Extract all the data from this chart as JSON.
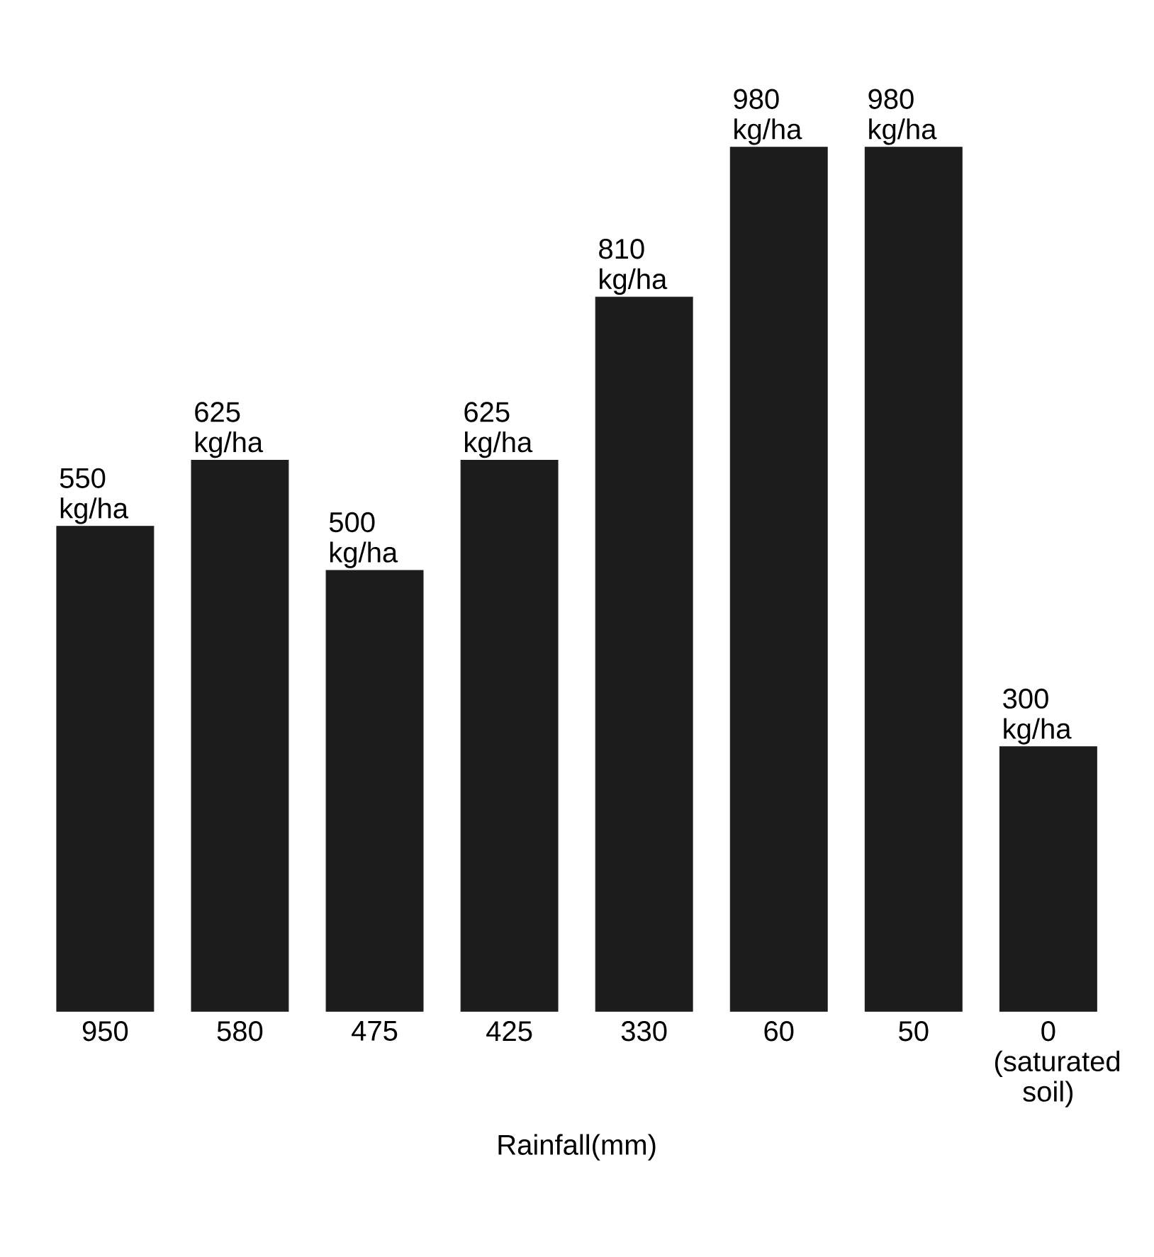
{
  "chart_data": {
    "type": "bar",
    "xlabel": "Rainfall(mm)",
    "categories": [
      "950",
      "580",
      "475",
      "425",
      "330",
      "60",
      "50",
      "0 (saturated soil)"
    ],
    "values": [
      550,
      625,
      500,
      625,
      810,
      980,
      980,
      300
    ],
    "value_labels": [
      "550 kg/ha",
      "625 kg/ha",
      "500 kg/ha",
      "625 kg/ha",
      "810 kg/ha",
      "980 kg/ha",
      "980 kg/ha",
      "300 kg/ha"
    ],
    "color": "#1c1c1c"
  }
}
